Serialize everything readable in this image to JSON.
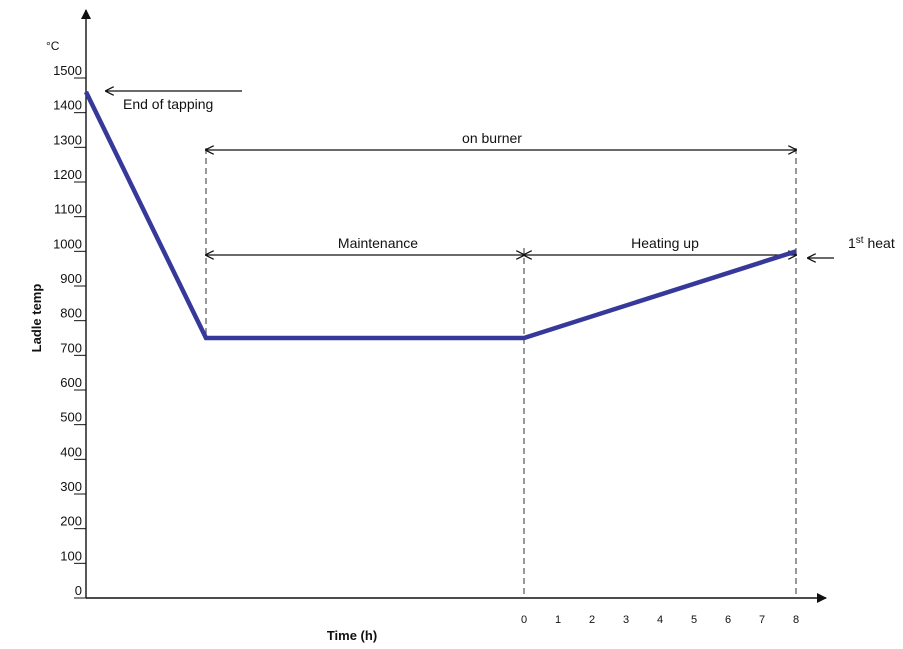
{
  "chart_data": {
    "type": "line",
    "y_unit": "°C",
    "ylabel": "Ladle temp",
    "xlabel": "Time (h)",
    "ylim": [
      0,
      1500
    ],
    "yticks": [
      0,
      100,
      200,
      300,
      400,
      500,
      600,
      700,
      800,
      900,
      1000,
      1100,
      1200,
      1300,
      1400,
      1500
    ],
    "xticks": [
      "0",
      "1",
      "2",
      "3",
      "4",
      "5",
      "6",
      "7",
      "8"
    ],
    "xlim_hours": [
      0,
      8
    ],
    "grid": false,
    "line_color": "#36399a",
    "points": [
      {
        "phase": "tapping",
        "y": 1460
      },
      {
        "phase": "maintenance-start",
        "y": 750
      },
      {
        "phase": "heating-start",
        "x": 0,
        "y": 750
      },
      {
        "phase": "heating-end",
        "x": 8,
        "y": 1000
      }
    ],
    "annotations": {
      "end_of_tapping": "End of tapping",
      "on_burner": "on burner",
      "maintenance": "Maintenance",
      "heating_up": "Heating up",
      "first_heat_prefix": "1",
      "first_heat_sup": "st",
      "first_heat_suffix": " heat"
    }
  }
}
